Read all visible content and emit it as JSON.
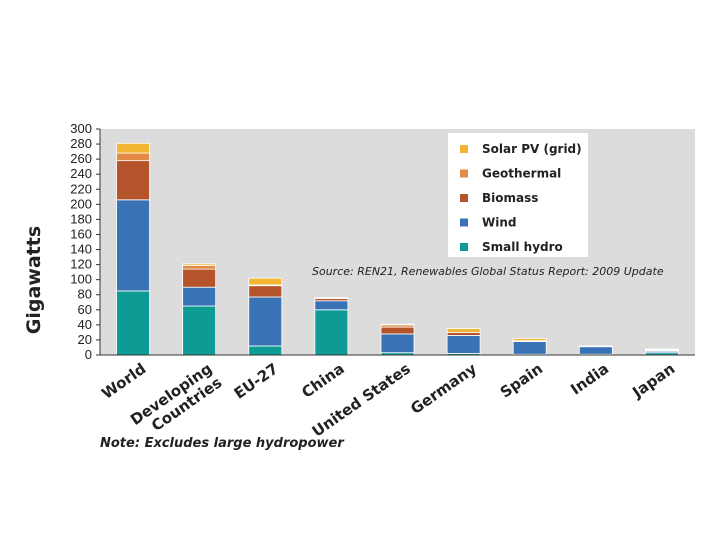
{
  "chart_data": {
    "type": "bar",
    "stacked": true,
    "ylabel": "Gigawatts",
    "ylim": [
      0,
      300
    ],
    "yticks": [
      0,
      20,
      40,
      60,
      80,
      100,
      120,
      140,
      160,
      180,
      200,
      220,
      240,
      260,
      280,
      300
    ],
    "grid": false,
    "legend_position": "top-right",
    "categories": [
      "World",
      "Developing Countries",
      "EU-27",
      "China",
      "United States",
      "Germany",
      "Spain",
      "India",
      "Japan"
    ],
    "category_lines": [
      [
        "World"
      ],
      [
        "Developing",
        "Countries"
      ],
      [
        "EU-27"
      ],
      [
        "China"
      ],
      [
        "United States"
      ],
      [
        "Germany"
      ],
      [
        "Spain"
      ],
      [
        "India"
      ],
      [
        "Japan"
      ]
    ],
    "series": [
      {
        "name": "Small hydro",
        "color": "#0e9b95",
        "values": [
          85,
          65,
          12,
          60,
          3,
          2,
          1,
          1,
          3
        ]
      },
      {
        "name": "Wind",
        "color": "#3a72b6",
        "values": [
          121,
          25,
          65,
          12,
          25,
          24,
          17,
          10,
          2
        ]
      },
      {
        "name": "Biomass",
        "color": "#b5532a",
        "values": [
          52,
          24,
          15,
          3,
          9,
          4,
          1,
          1,
          1
        ]
      },
      {
        "name": "Geothermal",
        "color": "#e38a45",
        "values": [
          10,
          5,
          1,
          0,
          3,
          0,
          0,
          0,
          1
        ]
      },
      {
        "name": "Solar PV (grid)",
        "color": "#f2b632",
        "values": [
          13,
          2,
          9,
          1,
          1,
          5,
          3,
          0,
          1
        ]
      }
    ],
    "legend_order": [
      "Solar PV (grid)",
      "Geothermal",
      "Biomass",
      "Wind",
      "Small hydro"
    ],
    "source": "Source: REN21, Renewables Global Status Report: 2009 Update",
    "plot_background": "#dcdcdc"
  },
  "note": "Note: Excludes large hydropower"
}
